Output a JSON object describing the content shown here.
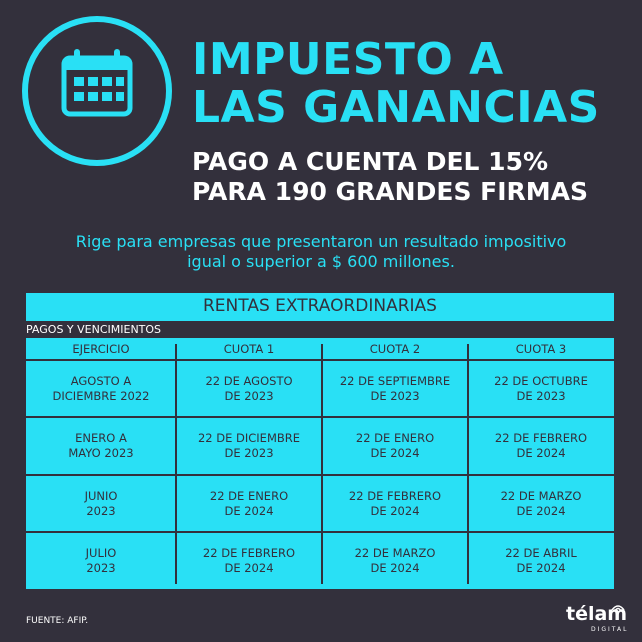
{
  "header": {
    "title_line1": "IMPUESTO A",
    "title_line2": "LAS GANANCIAS",
    "subtitle_line1": "PAGO A CUENTA DEL 15%",
    "subtitle_line2": "PARA 190 GRANDES FIRMAS",
    "icon": "calendar-icon"
  },
  "description": {
    "line1": "Rige para empresas que presentaron un resultado impositivo",
    "line2": "igual o superior a $ 600 millones."
  },
  "table": {
    "title": "RENTAS EXTRAORDINARIAS",
    "section_label": "PAGOS Y VENCIMIENTOS",
    "columns": [
      "EJERCICIO",
      "CUOTA 1",
      "CUOTA 2",
      "CUOTA 3"
    ],
    "rows": [
      [
        [
          "AGOSTO A",
          "DICIEMBRE 2022"
        ],
        [
          "22 DE AGOSTO",
          "DE 2023"
        ],
        [
          "22 DE SEPTIEMBRE",
          "DE 2023"
        ],
        [
          "22 DE OCTUBRE",
          "DE 2023"
        ]
      ],
      [
        [
          "ENERO A",
          "MAYO 2023"
        ],
        [
          "22 DE DICIEMBRE",
          "DE 2023"
        ],
        [
          "22 DE ENERO",
          "DE 2024"
        ],
        [
          "22 DE FEBRERO",
          "DE 2024"
        ]
      ],
      [
        [
          "JUNIO",
          "2023"
        ],
        [
          "22 DE ENERO",
          "DE 2024"
        ],
        [
          "22 DE FEBRERO",
          "DE 2024"
        ],
        [
          "22 DE MARZO",
          "DE 2024"
        ]
      ],
      [
        [
          "JULIO",
          "2023"
        ],
        [
          "22 DE FEBRERO",
          "DE 2024"
        ],
        [
          "22 DE MARZO",
          "DE 2024"
        ],
        [
          "22 DE ABRIL",
          "DE 2024"
        ]
      ]
    ]
  },
  "footer": {
    "source": "FUENTE: AFIP.",
    "logo": "télam",
    "logo_sub": "DIGITAL"
  },
  "colors": {
    "background": "#33303c",
    "accent": "#29e0f5",
    "text_light": "#ffffff"
  }
}
